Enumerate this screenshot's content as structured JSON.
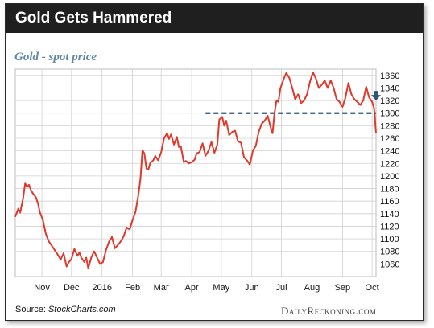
{
  "header": {
    "title": "Gold Gets Hammered"
  },
  "footer": {
    "source_prefix": "Source: ",
    "source_site": "StockCharts.com",
    "brand": "DailyReckoning.com"
  },
  "colors": {
    "line": "#e0392b",
    "reference_line": "#2f5476",
    "title_bg": "#1f1f1f",
    "subtitle": "#5f86a6",
    "grid": "#d0d0d0"
  },
  "chart_data": {
    "type": "line",
    "title": "Gold Gets Hammered",
    "subtitle": "Gold - spot price",
    "xlabel": "",
    "ylabel": "",
    "grid": true,
    "y_axis_side": "right",
    "ylim": [
      1040,
      1370
    ],
    "yticks": [
      1060,
      1080,
      1100,
      1120,
      1140,
      1160,
      1180,
      1200,
      1220,
      1240,
      1260,
      1280,
      1300,
      1320,
      1340,
      1360
    ],
    "x_tick_labels": [
      "Nov",
      "Dec",
      "2016",
      "Feb",
      "Mar",
      "Apr",
      "May",
      "Jun",
      "Jul",
      "Aug",
      "Sep",
      "Oct"
    ],
    "x_range": [
      "2015-10-05",
      "2016-10-05"
    ],
    "x_ticks": [
      "2015-11-01",
      "2015-12-01",
      "2016-01-01",
      "2016-02-01",
      "2016-03-01",
      "2016-04-01",
      "2016-05-01",
      "2016-06-01",
      "2016-07-01",
      "2016-08-01",
      "2016-09-01",
      "2016-10-01"
    ],
    "series": [
      {
        "points": [
          [
            "2015-10-05",
            1135
          ],
          [
            "2015-10-08",
            1148
          ],
          [
            "2015-10-10",
            1142
          ],
          [
            "2015-10-13",
            1165
          ],
          [
            "2015-10-15",
            1188
          ],
          [
            "2015-10-17",
            1183
          ],
          [
            "2015-10-19",
            1186
          ],
          [
            "2015-10-21",
            1177
          ],
          [
            "2015-10-23",
            1172
          ],
          [
            "2015-10-26",
            1166
          ],
          [
            "2015-10-28",
            1156
          ],
          [
            "2015-10-30",
            1142
          ],
          [
            "2015-11-02",
            1130
          ],
          [
            "2015-11-05",
            1108
          ],
          [
            "2015-11-08",
            1096
          ],
          [
            "2015-11-11",
            1089
          ],
          [
            "2015-11-14",
            1082
          ],
          [
            "2015-11-17",
            1075
          ],
          [
            "2015-11-20",
            1067
          ],
          [
            "2015-11-23",
            1077
          ],
          [
            "2015-11-26",
            1056
          ],
          [
            "2015-11-28",
            1062
          ],
          [
            "2015-12-01",
            1068
          ],
          [
            "2015-12-04",
            1084
          ],
          [
            "2015-12-07",
            1073
          ],
          [
            "2015-12-09",
            1078
          ],
          [
            "2015-12-11",
            1070
          ],
          [
            "2015-12-14",
            1063
          ],
          [
            "2015-12-16",
            1070
          ],
          [
            "2015-12-18",
            1053
          ],
          [
            "2015-12-21",
            1070
          ],
          [
            "2015-12-24",
            1080
          ],
          [
            "2015-12-27",
            1070
          ],
          [
            "2015-12-30",
            1060
          ],
          [
            "2016-01-02",
            1063
          ],
          [
            "2016-01-05",
            1082
          ],
          [
            "2016-01-08",
            1095
          ],
          [
            "2016-01-11",
            1103
          ],
          [
            "2016-01-14",
            1085
          ],
          [
            "2016-01-17",
            1090
          ],
          [
            "2016-01-20",
            1096
          ],
          [
            "2016-01-23",
            1104
          ],
          [
            "2016-01-26",
            1118
          ],
          [
            "2016-01-29",
            1115
          ],
          [
            "2016-02-01",
            1130
          ],
          [
            "2016-02-04",
            1143
          ],
          [
            "2016-02-07",
            1171
          ],
          [
            "2016-02-09",
            1196
          ],
          [
            "2016-02-11",
            1241
          ],
          [
            "2016-02-13",
            1236
          ],
          [
            "2016-02-15",
            1212
          ],
          [
            "2016-02-17",
            1210
          ],
          [
            "2016-02-19",
            1221
          ],
          [
            "2016-02-22",
            1225
          ],
          [
            "2016-02-24",
            1232
          ],
          [
            "2016-02-27",
            1225
          ],
          [
            "2016-03-01",
            1238
          ],
          [
            "2016-03-04",
            1260
          ],
          [
            "2016-03-07",
            1268
          ],
          [
            "2016-03-09",
            1259
          ],
          [
            "2016-03-11",
            1266
          ],
          [
            "2016-03-14",
            1250
          ],
          [
            "2016-03-17",
            1262
          ],
          [
            "2016-03-19",
            1246
          ],
          [
            "2016-03-21",
            1247
          ],
          [
            "2016-03-24",
            1222
          ],
          [
            "2016-03-26",
            1224
          ],
          [
            "2016-03-29",
            1220
          ],
          [
            "2016-04-01",
            1222
          ],
          [
            "2016-04-04",
            1226
          ],
          [
            "2016-04-06",
            1236
          ],
          [
            "2016-04-09",
            1238
          ],
          [
            "2016-04-12",
            1252
          ],
          [
            "2016-04-15",
            1232
          ],
          [
            "2016-04-18",
            1240
          ],
          [
            "2016-04-21",
            1254
          ],
          [
            "2016-04-24",
            1237
          ],
          [
            "2016-04-27",
            1250
          ],
          [
            "2016-04-29",
            1290
          ],
          [
            "2016-05-02",
            1294
          ],
          [
            "2016-05-04",
            1280
          ],
          [
            "2016-05-06",
            1288
          ],
          [
            "2016-05-09",
            1265
          ],
          [
            "2016-05-12",
            1270
          ],
          [
            "2016-05-15",
            1272
          ],
          [
            "2016-05-18",
            1255
          ],
          [
            "2016-05-21",
            1253
          ],
          [
            "2016-05-24",
            1230
          ],
          [
            "2016-05-27",
            1225
          ],
          [
            "2016-05-30",
            1218
          ],
          [
            "2016-06-02",
            1240
          ],
          [
            "2016-06-05",
            1248
          ],
          [
            "2016-06-08",
            1270
          ],
          [
            "2016-06-11",
            1283
          ],
          [
            "2016-06-14",
            1288
          ],
          [
            "2016-06-17",
            1296
          ],
          [
            "2016-06-20",
            1278
          ],
          [
            "2016-06-22",
            1268
          ],
          [
            "2016-06-24",
            1300
          ],
          [
            "2016-06-26",
            1320
          ],
          [
            "2016-06-28",
            1318
          ],
          [
            "2016-06-30",
            1340
          ],
          [
            "2016-07-04",
            1357
          ],
          [
            "2016-07-06",
            1364
          ],
          [
            "2016-07-09",
            1356
          ],
          [
            "2016-07-12",
            1340
          ],
          [
            "2016-07-15",
            1322
          ],
          [
            "2016-07-18",
            1330
          ],
          [
            "2016-07-21",
            1316
          ],
          [
            "2016-07-24",
            1320
          ],
          [
            "2016-07-27",
            1330
          ],
          [
            "2016-07-30",
            1350
          ],
          [
            "2016-08-02",
            1365
          ],
          [
            "2016-08-05",
            1355
          ],
          [
            "2016-08-08",
            1340
          ],
          [
            "2016-08-11",
            1345
          ],
          [
            "2016-08-14",
            1352
          ],
          [
            "2016-08-17",
            1340
          ],
          [
            "2016-08-20",
            1352
          ],
          [
            "2016-08-23",
            1340
          ],
          [
            "2016-08-26",
            1322
          ],
          [
            "2016-08-29",
            1318
          ],
          [
            "2016-09-01",
            1310
          ],
          [
            "2016-09-04",
            1325
          ],
          [
            "2016-09-07",
            1348
          ],
          [
            "2016-09-10",
            1330
          ],
          [
            "2016-09-13",
            1322
          ],
          [
            "2016-09-16",
            1318
          ],
          [
            "2016-09-19",
            1313
          ],
          [
            "2016-09-22",
            1320
          ],
          [
            "2016-09-25",
            1342
          ],
          [
            "2016-09-28",
            1325
          ],
          [
            "2016-10-01",
            1318
          ],
          [
            "2016-10-03",
            1308
          ],
          [
            "2016-10-05",
            1268
          ]
        ]
      }
    ],
    "reference_line": {
      "y": 1300,
      "x_from": "2016-04-15",
      "x_to": "2016-10-05",
      "style": "dashed"
    },
    "annotation": {
      "type": "down-arrow",
      "at": [
        "2016-10-05",
        1325
      ]
    }
  }
}
